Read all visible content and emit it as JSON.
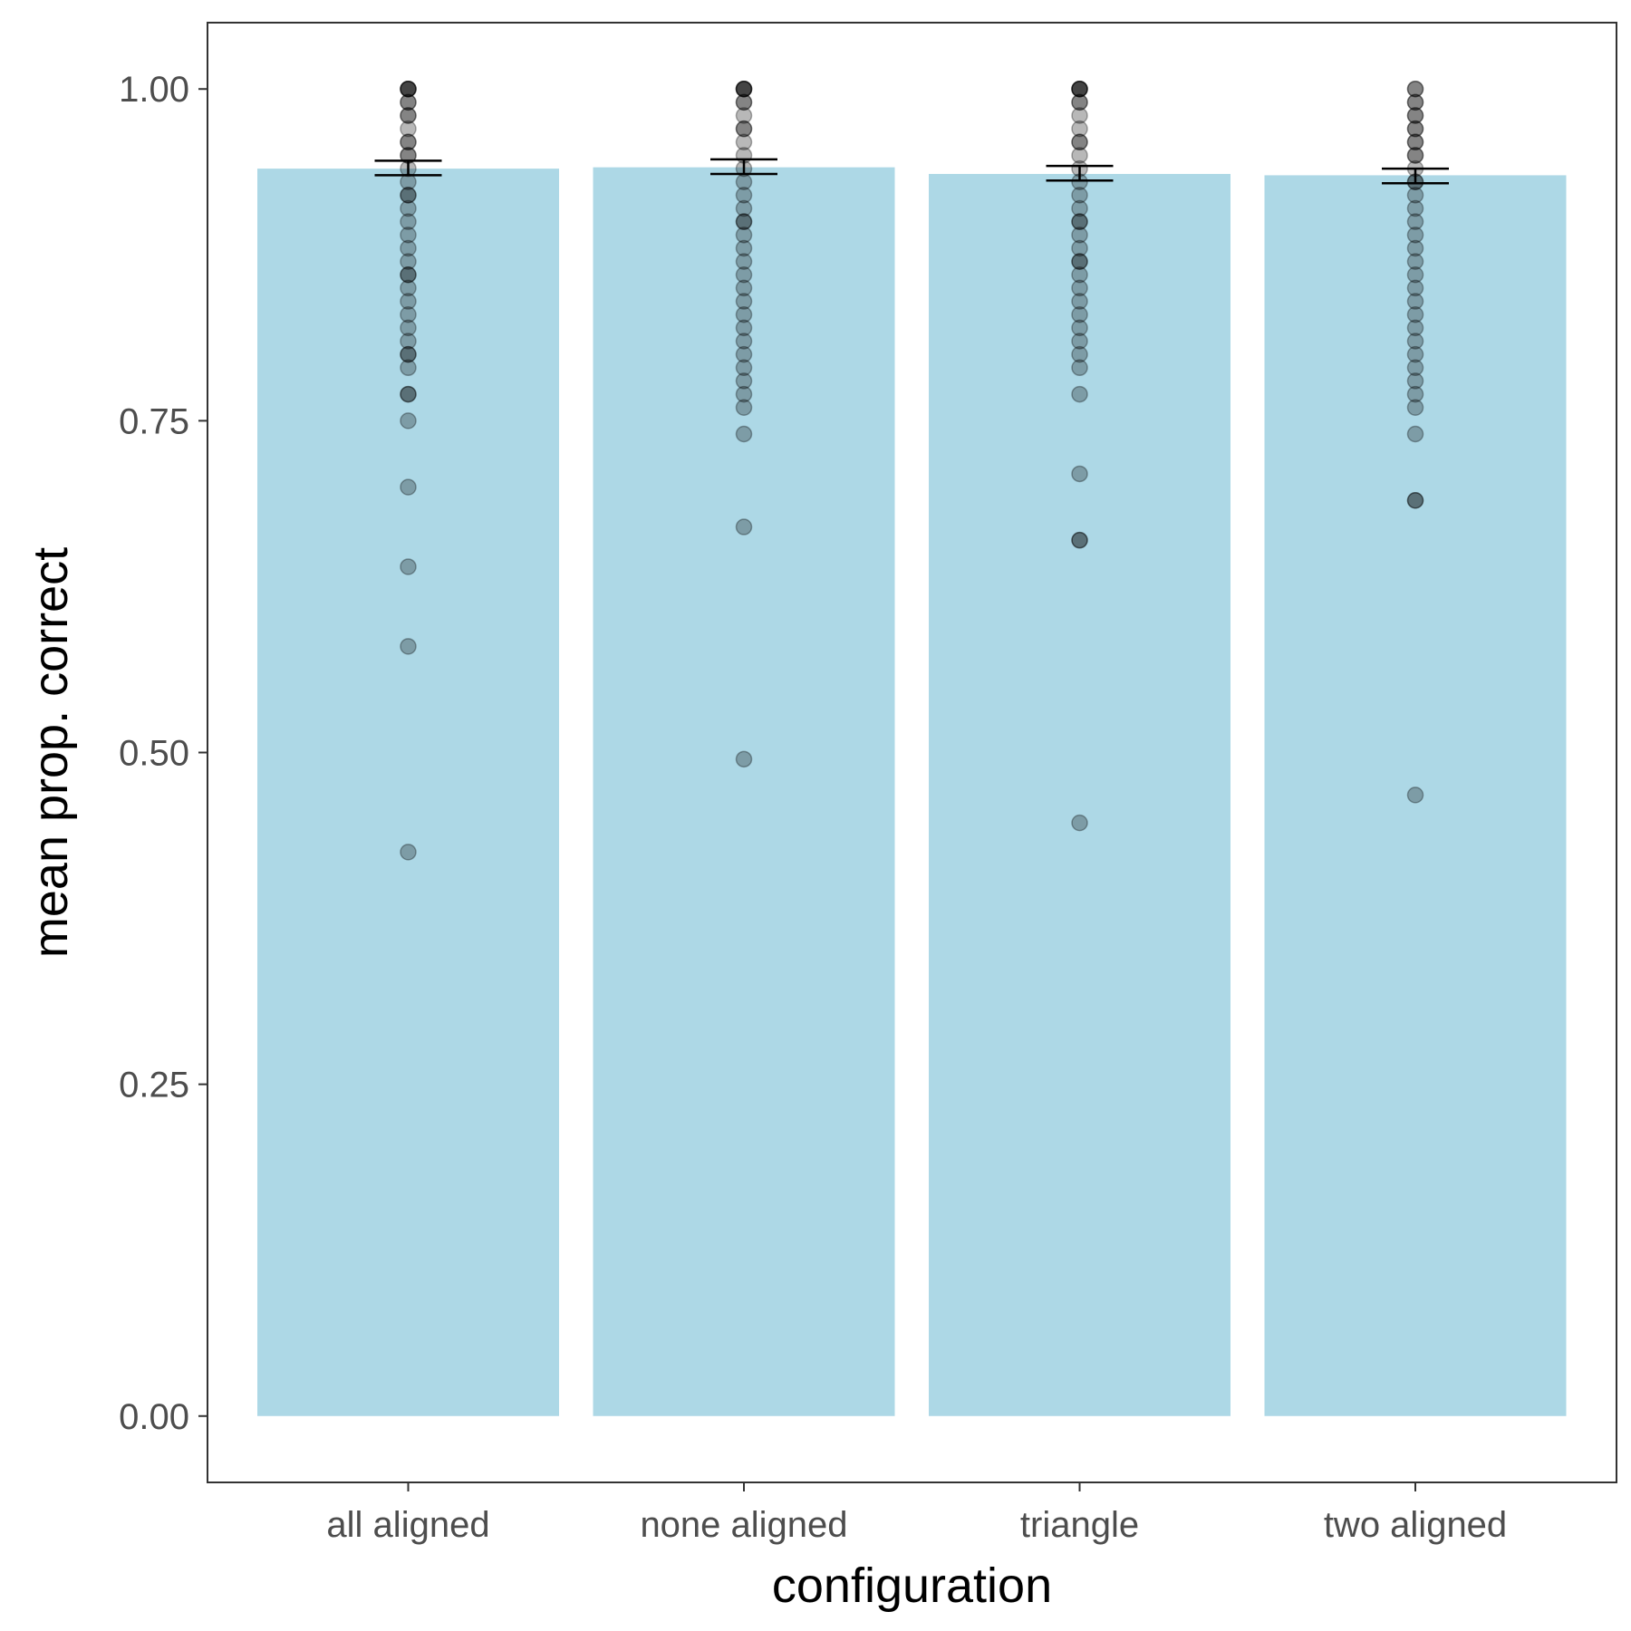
{
  "chart_data": {
    "type": "bar",
    "title": "",
    "xlabel": "configuration",
    "ylabel": "mean prop. correct",
    "categories": [
      "all aligned",
      "none aligned",
      "triangle",
      "two aligned"
    ],
    "values": [
      0.94,
      0.941,
      0.936,
      0.935
    ],
    "error_bars": [
      {
        "low": 0.935,
        "high": 0.946
      },
      {
        "low": 0.936,
        "high": 0.947
      },
      {
        "low": 0.931,
        "high": 0.942
      },
      {
        "low": 0.929,
        "high": 0.94
      }
    ],
    "points": [
      [
        1.0,
        1.0,
        1.0,
        1.0,
        0.99,
        0.99,
        0.98,
        0.98,
        0.97,
        0.96,
        0.96,
        0.95,
        0.95,
        0.94,
        0.93,
        0.92,
        0.92,
        0.91,
        0.9,
        0.89,
        0.88,
        0.87,
        0.86,
        0.86,
        0.85,
        0.84,
        0.83,
        0.82,
        0.81,
        0.8,
        0.8,
        0.79,
        0.77,
        0.77,
        0.75,
        0.7,
        0.64,
        0.58,
        0.425
      ],
      [
        1.0,
        1.0,
        1.0,
        1.0,
        0.99,
        0.99,
        0.98,
        0.97,
        0.97,
        0.96,
        0.95,
        0.94,
        0.93,
        0.92,
        0.91,
        0.9,
        0.9,
        0.89,
        0.88,
        0.87,
        0.86,
        0.85,
        0.84,
        0.83,
        0.82,
        0.81,
        0.8,
        0.79,
        0.78,
        0.77,
        0.76,
        0.74,
        0.67,
        0.495
      ],
      [
        1.0,
        1.0,
        1.0,
        1.0,
        0.99,
        0.99,
        0.98,
        0.97,
        0.96,
        0.96,
        0.95,
        0.94,
        0.93,
        0.92,
        0.91,
        0.9,
        0.9,
        0.89,
        0.88,
        0.87,
        0.87,
        0.86,
        0.85,
        0.84,
        0.83,
        0.82,
        0.81,
        0.8,
        0.79,
        0.77,
        0.71,
        0.66,
        0.66,
        0.447
      ],
      [
        1.0,
        1.0,
        0.99,
        0.99,
        0.98,
        0.98,
        0.97,
        0.97,
        0.96,
        0.96,
        0.95,
        0.95,
        0.94,
        0.93,
        0.93,
        0.92,
        0.91,
        0.9,
        0.89,
        0.88,
        0.87,
        0.86,
        0.85,
        0.84,
        0.83,
        0.82,
        0.81,
        0.8,
        0.79,
        0.78,
        0.77,
        0.76,
        0.74,
        0.69,
        0.69,
        0.468
      ]
    ],
    "ylim": [
      -0.05,
      1.05
    ],
    "y_ticks": [
      "0.00",
      "0.25",
      "0.50",
      "0.75",
      "1.00"
    ],
    "y_tick_values": [
      0,
      0.25,
      0.5,
      0.75,
      1.0
    ],
    "grid": false,
    "colors": {
      "bar": "#add8e6",
      "points": "#000000",
      "errorbar": "#000000",
      "panel_border": "#333333",
      "tick_text": "#4d4d4d"
    }
  }
}
